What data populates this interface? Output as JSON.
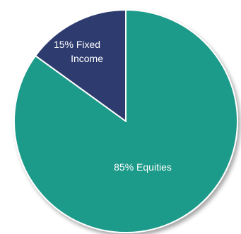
{
  "chart_data": {
    "type": "pie",
    "slices": [
      {
        "label": "Equities",
        "value": 85,
        "label_text": "85% Equities",
        "color": "#1d9a8a"
      },
      {
        "label": "Fixed Income",
        "value": 15,
        "label_lines": [
          "15% Fixed",
          "Income"
        ],
        "color": "#2f3a6e"
      }
    ],
    "legend": "none",
    "start_angle": "12 o'clock",
    "direction": "clockwise"
  }
}
